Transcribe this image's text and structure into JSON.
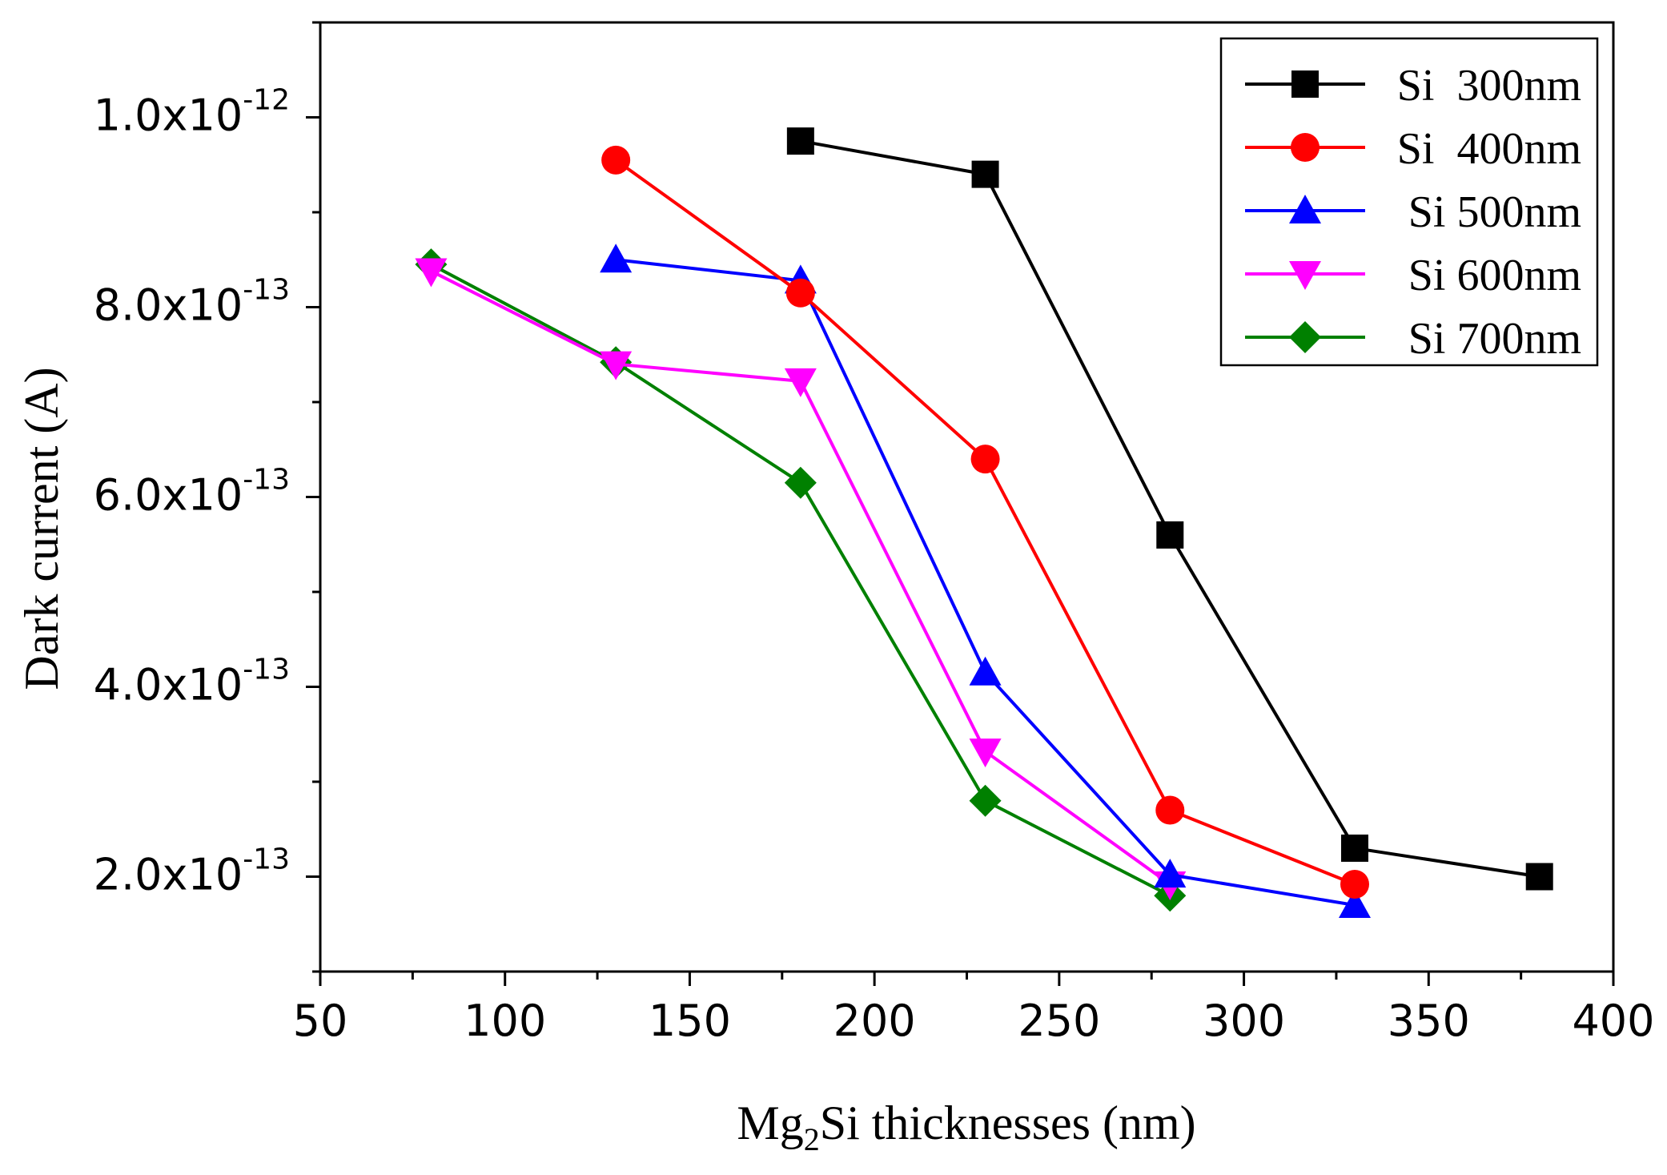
{
  "chart_data": {
    "type": "line",
    "title": "",
    "xlabel": {
      "prefix": "Mg",
      "subscript": "2",
      "suffix": "Si thicknesses (nm)"
    },
    "ylabel": "Dark current (A)",
    "xlim": [
      50,
      400
    ],
    "ylim": [
      1e-13,
      1.1e-12
    ],
    "xticks": [
      50,
      100,
      150,
      200,
      250,
      300,
      350,
      400
    ],
    "xtick_labels": [
      "50",
      "100",
      "150",
      "200",
      "250",
      "300",
      "350",
      "400"
    ],
    "yticks": [
      {
        "value": 2e-13,
        "mantissa": "2.0x10",
        "exponent": "-13"
      },
      {
        "value": 4e-13,
        "mantissa": "4.0x10",
        "exponent": "-13"
      },
      {
        "value": 6e-13,
        "mantissa": "6.0x10",
        "exponent": "-13"
      },
      {
        "value": 8e-13,
        "mantissa": "8.0x10",
        "exponent": "-13"
      },
      {
        "value": 1e-12,
        "mantissa": "1.0x10",
        "exponent": "-12"
      }
    ],
    "grid": false,
    "legend_position": "top-right",
    "series": [
      {
        "name": "Si  300nm",
        "color": "#000000",
        "marker": "square",
        "x": [
          180,
          230,
          280,
          330,
          380
        ],
        "y": [
          9.75e-13,
          9.4e-13,
          5.6e-13,
          2.3e-13,
          2e-13
        ]
      },
      {
        "name": "Si  400nm",
        "color": "#ff0000",
        "marker": "circle",
        "x": [
          130,
          180,
          230,
          280,
          330
        ],
        "y": [
          9.55e-13,
          8.15e-13,
          6.4e-13,
          2.7e-13,
          1.92e-13
        ]
      },
      {
        "name": "Si 500nm",
        "color": "#0000ff",
        "marker": "triangle-up",
        "x": [
          130,
          180,
          230,
          280,
          330
        ],
        "y": [
          8.5e-13,
          8.28e-13,
          4.15e-13,
          2.02e-13,
          1.7e-13
        ]
      },
      {
        "name": "Si 600nm",
        "color": "#ff00ff",
        "marker": "triangle-down",
        "x": [
          80,
          130,
          180,
          230,
          280
        ],
        "y": [
          8.38e-13,
          7.4e-13,
          7.22e-13,
          3.32e-13,
          1.92e-13
        ]
      },
      {
        "name": "Si 700nm",
        "color": "#008000",
        "marker": "diamond",
        "x": [
          80,
          130,
          180,
          230,
          280
        ],
        "y": [
          8.45e-13,
          7.42e-13,
          6.15e-13,
          2.8e-13,
          1.8e-13
        ]
      }
    ]
  }
}
